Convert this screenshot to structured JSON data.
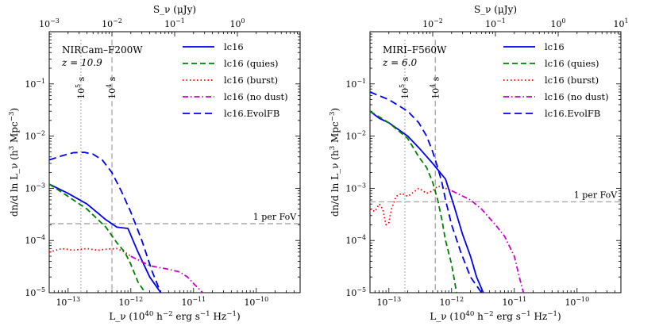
{
  "chart_data": [
    {
      "type": "line",
      "panel_title": "NIRCam–F200W",
      "panel_subtitle": "z = 10.9",
      "xlabel": "L_ν (10^40 h^-2 erg s^-1 Hz^-1)",
      "ylabel": "dn/d ln L_ν (h^3 Mpc^-3)",
      "top_xlabel": "S_ν (μJy)",
      "xscale": "log",
      "yscale": "log",
      "xlim": [
        5e-14,
        5e-10
      ],
      "ylim": [
        1e-05,
        1
      ],
      "top_xlim": [
        0.001,
        10
      ],
      "x_ticks": [
        {
          "value": 1e-13,
          "label": "10^-13"
        },
        {
          "value": 1e-12,
          "label": "10^-12"
        },
        {
          "value": 1e-11,
          "label": "10^-11"
        },
        {
          "value": 1e-10,
          "label": "10^-10"
        }
      ],
      "y_ticks": [
        {
          "value": 1e-05,
          "label": "10^-5"
        },
        {
          "value": 0.0001,
          "label": "10^-4"
        },
        {
          "value": 0.001,
          "label": "10^-3"
        },
        {
          "value": 0.01,
          "label": "10^-2"
        },
        {
          "value": 0.1,
          "label": "10^-1"
        }
      ],
      "top_ticks": [
        {
          "value": 0.001,
          "label": "10^-3"
        },
        {
          "value": 0.01,
          "label": "10^-2"
        },
        {
          "value": 0.1,
          "label": "10^-1"
        },
        {
          "value": 1,
          "label": "10^0"
        }
      ],
      "vlines": [
        {
          "x": 1.6e-13,
          "label": "10^5 s",
          "style": "dotted"
        },
        {
          "x": 5e-13,
          "label": "10^4 s",
          "style": "dashed"
        }
      ],
      "hline": {
        "y": 0.00021,
        "label": "1 per FoV"
      },
      "series": [
        {
          "name": "lc16",
          "color": "#0000ee",
          "dash": "solid",
          "width": 1.8,
          "x": [
            5e-14,
            1e-13,
            2e-13,
            4e-13,
            6e-13,
            9e-13,
            1.3e-12,
            2e-12,
            3e-12
          ],
          "y": [
            0.0012,
            0.0008,
            0.0005,
            0.00025,
            0.00018,
            0.00017,
            6e-05,
            2e-05,
            1e-05
          ]
        },
        {
          "name": "lc16 (quies)",
          "color": "#008000",
          "dash": "dashed",
          "width": 1.8,
          "x": [
            5e-14,
            1e-13,
            2e-13,
            4e-13,
            6e-13,
            8e-13,
            1e-12,
            1.3e-12,
            1.7e-12
          ],
          "y": [
            0.0012,
            0.0007,
            0.0004,
            0.00018,
            9e-05,
            6e-05,
            3.5e-05,
            1.6e-05,
            1e-05
          ]
        },
        {
          "name": "lc16 (burst)",
          "color": "#ff0000",
          "dash": "dotted",
          "width": 1.8,
          "x": [
            5e-14,
            8e-14,
            1.2e-13,
            2e-13,
            3e-13,
            4e-13,
            6e-13,
            8e-13,
            1e-12
          ],
          "y": [
            6e-05,
            7e-05,
            6.5e-05,
            7e-05,
            6.5e-05,
            6.8e-05,
            7e-05,
            6e-05,
            5e-05
          ]
        },
        {
          "name": "lc16 (no dust)",
          "color": "#cc00cc",
          "dash": "dashdot",
          "width": 1.8,
          "x": [
            1e-12,
            2e-12,
            4e-12,
            6e-12,
            8e-12,
            1e-11,
            1.4e-11
          ],
          "y": [
            5e-05,
            3.3e-05,
            2.8e-05,
            2.5e-05,
            2e-05,
            1.5e-05,
            1e-05
          ]
        },
        {
          "name": "lc16.EvolFB",
          "color": "#0000ee",
          "dash": "longdash",
          "width": 1.8,
          "x": [
            5e-14,
            8e-14,
            1.2e-13,
            1.8e-13,
            2.5e-13,
            3.5e-13,
            5e-13,
            7e-13,
            1e-12,
            1.5e-12,
            2.2e-12,
            3e-12
          ],
          "y": [
            0.0035,
            0.0042,
            0.0048,
            0.0049,
            0.0045,
            0.0035,
            0.002,
            0.0009,
            0.00035,
            0.0001,
            2.5e-05,
            1e-05
          ]
        }
      ]
    },
    {
      "type": "line",
      "panel_title": "MIRI–F560W",
      "panel_subtitle": "z = 6.0",
      "xlabel": "L_ν (10^40 h^-2 erg s^-1 Hz^-1)",
      "ylabel": "dn/d ln L_ν (h^3 Mpc^-3)",
      "top_xlabel": "S_ν (μJy)",
      "xscale": "log",
      "yscale": "log",
      "xlim": [
        5e-14,
        5e-10
      ],
      "ylim": [
        1e-05,
        1
      ],
      "top_xlim": [
        0.001,
        10
      ],
      "x_ticks": [
        {
          "value": 1e-13,
          "label": "10^-13"
        },
        {
          "value": 1e-12,
          "label": "10^-12"
        },
        {
          "value": 1e-11,
          "label": "10^-11"
        },
        {
          "value": 1e-10,
          "label": "10^-10"
        }
      ],
      "y_ticks": [
        {
          "value": 1e-05,
          "label": "10^-5"
        },
        {
          "value": 0.0001,
          "label": "10^-4"
        },
        {
          "value": 0.001,
          "label": "10^-3"
        },
        {
          "value": 0.01,
          "label": "10^-2"
        },
        {
          "value": 0.1,
          "label": "10^-1"
        }
      ],
      "top_ticks": [
        {
          "value": 0.01,
          "label": "10^-2"
        },
        {
          "value": 0.1,
          "label": "10^-1"
        },
        {
          "value": 1,
          "label": "10^0"
        },
        {
          "value": 10,
          "label": "10^1"
        }
      ],
      "vlines": [
        {
          "x": 1.8e-13,
          "label": "10^5 s",
          "style": "dotted"
        },
        {
          "x": 5.5e-13,
          "label": "10^4 s",
          "style": "dashed"
        }
      ],
      "hline": {
        "y": 0.00055,
        "label": "1 per FoV"
      },
      "series": [
        {
          "name": "lc16",
          "color": "#0000ee",
          "dash": "solid",
          "width": 1.8,
          "x": [
            5e-14,
            7e-14,
            1e-13,
            2e-13,
            3e-13,
            5e-13,
            8e-13,
            1.1e-12,
            1.5e-12,
            2e-12,
            2.5e-12,
            3.2e-12
          ],
          "y": [
            0.03,
            0.022,
            0.018,
            0.01,
            0.006,
            0.003,
            0.0015,
            0.00045,
            0.00013,
            5e-05,
            2e-05,
            1e-05
          ]
        },
        {
          "name": "lc16 (quies)",
          "color": "#008000",
          "dash": "dashed",
          "width": 1.8,
          "x": [
            5e-14,
            1e-13,
            2e-13,
            3e-13,
            4e-13,
            5e-13,
            6e-13,
            7e-13,
            8e-13,
            1e-12,
            1.2e-12
          ],
          "y": [
            0.03,
            0.018,
            0.009,
            0.004,
            0.0025,
            0.0013,
            0.0006,
            0.00025,
            0.0001,
            3.5e-05,
            1e-05
          ]
        },
        {
          "name": "lc16 (burst)",
          "color": "#ff0000",
          "dash": "dotted",
          "width": 1.8,
          "x": [
            5e-14,
            6e-14,
            7e-14,
            8e-14,
            9e-14,
            1e-13,
            1.1e-13,
            1.3e-13,
            1.6e-13,
            2e-13,
            3e-13,
            4e-13,
            5e-13,
            6e-13,
            8e-13,
            1e-12
          ],
          "y": [
            0.0004,
            0.00036,
            0.0005,
            0.0004,
            0.0002,
            0.00022,
            0.0004,
            0.0007,
            0.0008,
            0.0007,
            0.001,
            0.0008,
            0.0009,
            0.0011,
            0.001,
            0.0009
          ]
        },
        {
          "name": "lc16 (no dust)",
          "color": "#cc00cc",
          "dash": "dashdot",
          "width": 1.8,
          "x": [
            1e-12,
            2e-12,
            3e-12,
            5e-12,
            7e-12,
            1e-11,
            1.2e-11,
            1.4e-11
          ],
          "y": [
            0.0009,
            0.0006,
            0.0004,
            0.0002,
            0.00012,
            5e-05,
            2e-05,
            1e-05
          ]
        },
        {
          "name": "lc16.EvolFB",
          "color": "#0000ee",
          "dash": "longdash",
          "width": 1.8,
          "x": [
            5e-14,
            1e-13,
            2e-13,
            3e-13,
            4e-13,
            5e-13,
            6e-13,
            7e-13,
            8e-13,
            1e-12,
            1.4e-12,
            2e-12,
            3e-12
          ],
          "y": [
            0.07,
            0.05,
            0.03,
            0.018,
            0.01,
            0.005,
            0.0025,
            0.0013,
            0.0006,
            0.0002,
            6e-05,
            2e-05,
            1e-05
          ]
        }
      ]
    }
  ]
}
